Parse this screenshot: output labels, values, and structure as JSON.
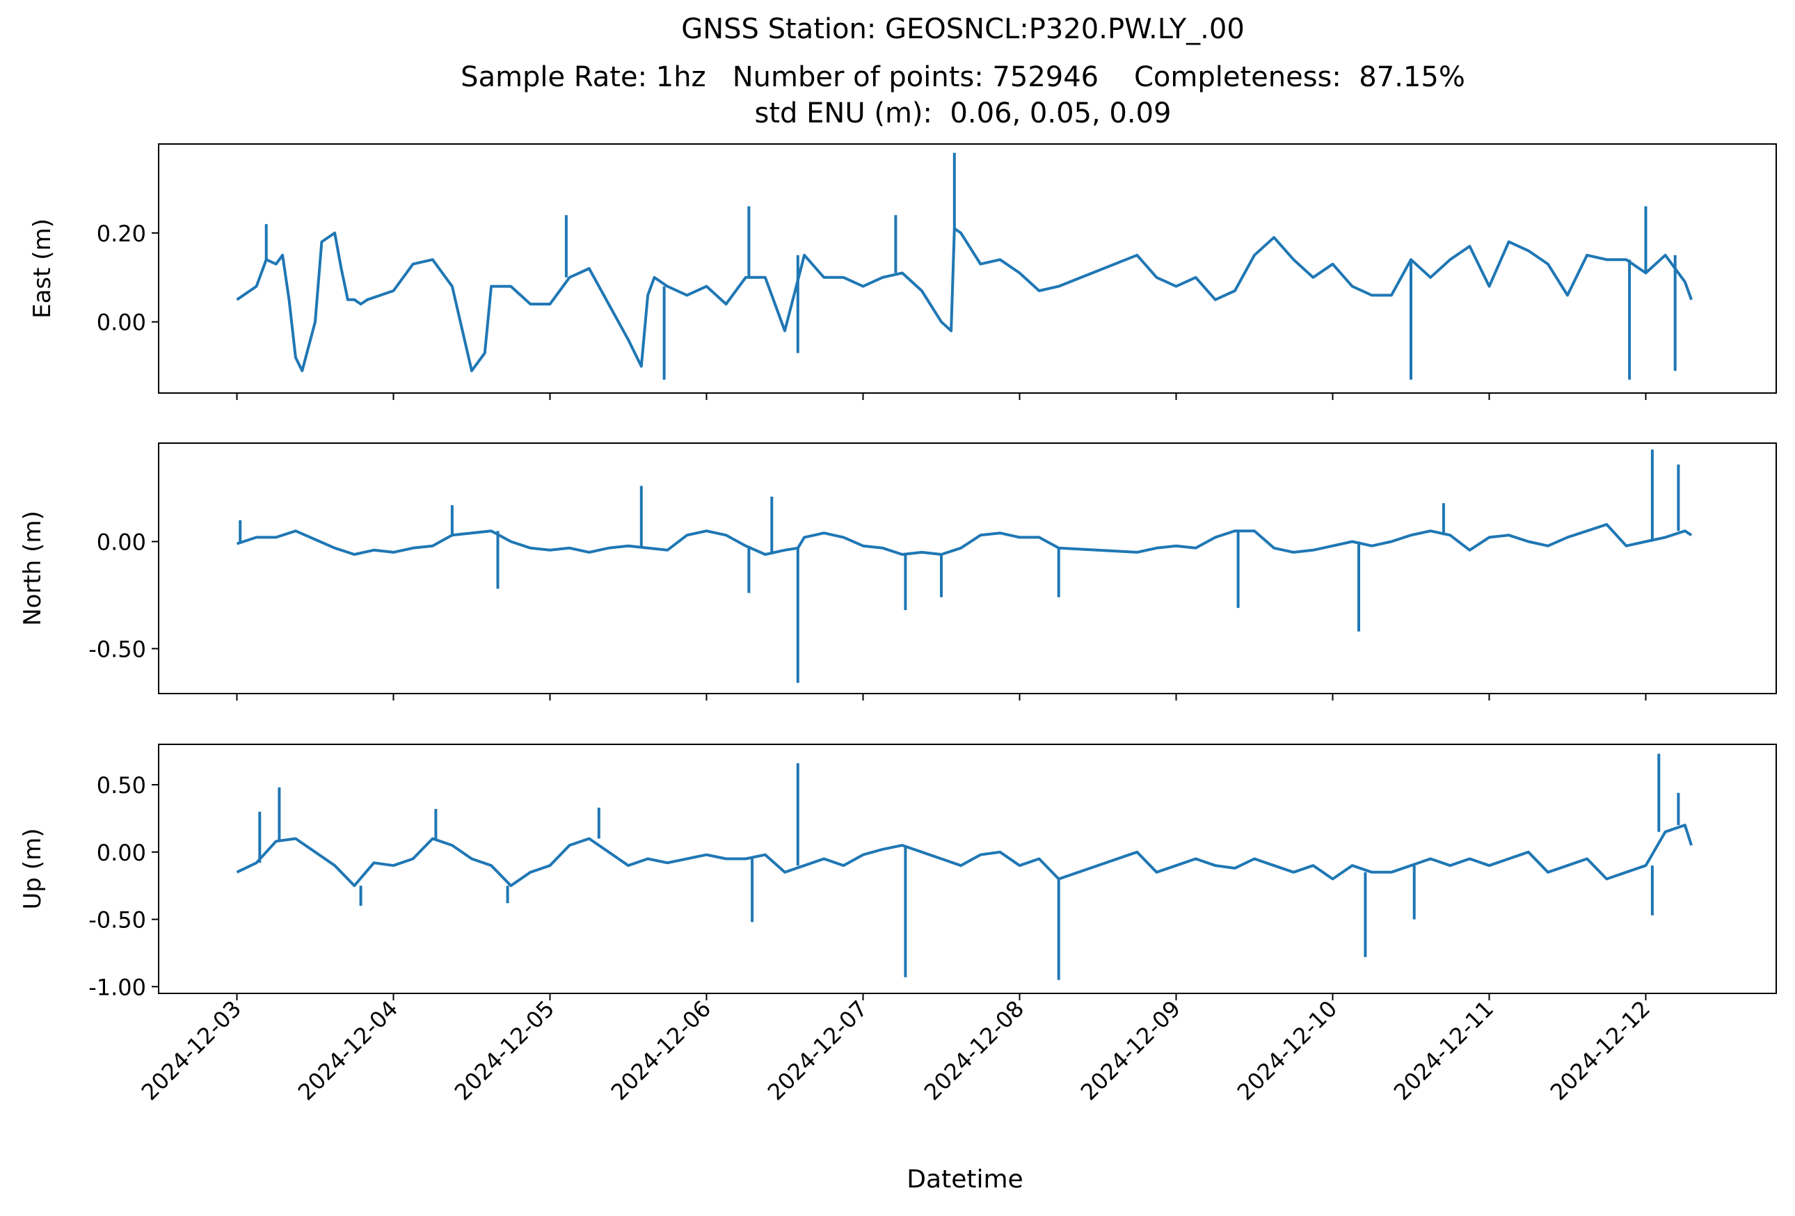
{
  "title": {
    "line1": "GNSS Station: GEOSNCL:P320.PW.LY_.00",
    "line2": "Sample Rate: 1hz   Number of points: 752946    Completeness:  87.15%",
    "line3": "std ENU (m):  0.06, 0.05, 0.09"
  },
  "xlabel": "Datetime",
  "chart_data": {
    "type": "line",
    "title": "GNSS Station: GEOSNCL:P320.PW.LY_.00",
    "xlabel": "Datetime",
    "x_ticks": [
      "2024-12-03",
      "2024-12-04",
      "2024-12-05",
      "2024-12-06",
      "2024-12-07",
      "2024-12-08",
      "2024-12-09",
      "2024-12-10",
      "2024-12-11",
      "2024-12-12"
    ],
    "xlim": [
      "2024-12-02T12:00",
      "2024-12-12T20:00"
    ],
    "line_color": "#1f77b4",
    "grid": false,
    "legend": "none",
    "panels": [
      {
        "ylabel": "East (m)",
        "ylim": [
          -0.16,
          0.4
        ],
        "yticks": [
          0.0,
          0.2
        ],
        "ytick_labels": [
          "0.00",
          "0.20"
        ],
        "series": {
          "x": [
            "2024-12-03T00:00",
            "2024-12-03T03:00",
            "2024-12-03T04:30",
            "2024-12-03T06:00",
            "2024-12-03T07:00",
            "2024-12-03T08:00",
            "2024-12-03T09:00",
            "2024-12-03T10:00",
            "2024-12-03T12:00",
            "2024-12-03T13:00",
            "2024-12-03T15:00",
            "2024-12-03T16:00",
            "2024-12-03T17:00",
            "2024-12-03T18:00",
            "2024-12-03T19:00",
            "2024-12-03T20:00",
            "2024-12-04T00:00",
            "2024-12-04T03:00",
            "2024-12-04T06:00",
            "2024-12-04T09:00",
            "2024-12-04T12:00",
            "2024-12-04T14:00",
            "2024-12-04T15:00",
            "2024-12-04T18:00",
            "2024-12-04T21:00",
            "2024-12-05T00:00",
            "2024-12-05T03:00",
            "2024-12-05T06:00",
            "2024-12-05T09:00",
            "2024-12-05T12:00",
            "2024-12-05T14:00",
            "2024-12-05T15:00",
            "2024-12-05T16:00",
            "2024-12-05T18:00",
            "2024-12-05T21:00",
            "2024-12-06T00:00",
            "2024-12-06T03:00",
            "2024-12-06T06:00",
            "2024-12-06T09:00",
            "2024-12-06T12:00",
            "2024-12-06T15:00",
            "2024-12-06T18:00",
            "2024-12-06T21:00",
            "2024-12-07T00:00",
            "2024-12-07T03:00",
            "2024-12-07T06:00",
            "2024-12-07T09:00",
            "2024-12-07T12:00",
            "2024-12-07T13:30",
            "2024-12-07T14:00",
            "2024-12-07T15:00",
            "2024-12-07T18:00",
            "2024-12-07T21:00",
            "2024-12-08T00:00",
            "2024-12-08T03:00",
            "2024-12-08T06:00",
            "2024-12-08T18:00",
            "2024-12-08T21:00",
            "2024-12-09T00:00",
            "2024-12-09T03:00",
            "2024-12-09T06:00",
            "2024-12-09T09:00",
            "2024-12-09T12:00",
            "2024-12-09T15:00",
            "2024-12-09T18:00",
            "2024-12-09T21:00",
            "2024-12-10T00:00",
            "2024-12-10T03:00",
            "2024-12-10T06:00",
            "2024-12-10T09:00",
            "2024-12-10T12:00",
            "2024-12-10T15:00",
            "2024-12-10T18:00",
            "2024-12-10T21:00",
            "2024-12-11T00:00",
            "2024-12-11T03:00",
            "2024-12-11T06:00",
            "2024-12-11T09:00",
            "2024-12-11T12:00",
            "2024-12-11T15:00",
            "2024-12-11T18:00",
            "2024-12-11T21:00",
            "2024-12-12T00:00",
            "2024-12-12T03:00",
            "2024-12-12T06:00",
            "2024-12-12T07:00"
          ],
          "y": [
            0.05,
            0.08,
            0.14,
            0.13,
            0.15,
            0.05,
            -0.08,
            -0.11,
            0.0,
            0.18,
            0.2,
            0.12,
            0.05,
            0.05,
            0.04,
            0.05,
            0.07,
            0.13,
            0.14,
            0.08,
            -0.11,
            -0.07,
            0.08,
            0.08,
            0.04,
            0.04,
            0.1,
            0.12,
            0.04,
            -0.04,
            -0.1,
            0.06,
            0.1,
            0.08,
            0.06,
            0.08,
            0.04,
            0.1,
            0.1,
            -0.02,
            0.15,
            0.1,
            0.1,
            0.08,
            0.1,
            0.11,
            0.07,
            0.0,
            -0.02,
            0.21,
            0.2,
            0.13,
            0.14,
            0.11,
            0.07,
            0.08,
            0.15,
            0.1,
            0.08,
            0.1,
            0.05,
            0.07,
            0.15,
            0.19,
            0.14,
            0.1,
            0.13,
            0.08,
            0.06,
            0.06,
            0.14,
            0.1,
            0.14,
            0.17,
            0.08,
            0.18,
            0.16,
            0.13,
            0.06,
            0.15,
            0.14,
            0.14,
            0.11,
            0.15,
            0.09,
            0.05
          ]
        },
        "spikes": [
          {
            "x": "2024-12-03T04:30",
            "y": 0.22
          },
          {
            "x": "2024-12-05T02:30",
            "y": 0.24
          },
          {
            "x": "2024-12-05T17:30",
            "y": -0.13
          },
          {
            "x": "2024-12-06T06:30",
            "y": 0.26
          },
          {
            "x": "2024-12-06T14:00",
            "y": -0.07
          },
          {
            "x": "2024-12-07T05:00",
            "y": 0.24
          },
          {
            "x": "2024-12-07T14:00",
            "y": 0.38
          },
          {
            "x": "2024-12-10T12:00",
            "y": -0.13
          },
          {
            "x": "2024-12-12T00:00",
            "y": 0.26
          },
          {
            "x": "2024-12-11T21:30",
            "y": -0.13
          },
          {
            "x": "2024-12-12T04:30",
            "y": -0.11
          }
        ]
      },
      {
        "ylabel": "North (m)",
        "ylim": [
          -0.71,
          0.46
        ],
        "yticks": [
          0.0,
          -0.5
        ],
        "ytick_labels": [
          "0.00",
          "-0.50"
        ],
        "series": {
          "x": [
            "2024-12-03T00:00",
            "2024-12-03T03:00",
            "2024-12-03T06:00",
            "2024-12-03T09:00",
            "2024-12-03T12:00",
            "2024-12-03T15:00",
            "2024-12-03T18:00",
            "2024-12-03T21:00",
            "2024-12-04T00:00",
            "2024-12-04T03:00",
            "2024-12-04T06:00",
            "2024-12-04T09:00",
            "2024-12-04T12:00",
            "2024-12-04T15:00",
            "2024-12-04T18:00",
            "2024-12-04T21:00",
            "2024-12-05T00:00",
            "2024-12-05T03:00",
            "2024-12-05T06:00",
            "2024-12-05T09:00",
            "2024-12-05T12:00",
            "2024-12-05T15:00",
            "2024-12-05T18:00",
            "2024-12-05T21:00",
            "2024-12-06T00:00",
            "2024-12-06T03:00",
            "2024-12-06T06:00",
            "2024-12-06T09:00",
            "2024-12-06T12:00",
            "2024-12-06T14:00",
            "2024-12-06T15:00",
            "2024-12-06T18:00",
            "2024-12-06T21:00",
            "2024-12-07T00:00",
            "2024-12-07T03:00",
            "2024-12-07T06:00",
            "2024-12-07T09:00",
            "2024-12-07T12:00",
            "2024-12-07T15:00",
            "2024-12-07T18:00",
            "2024-12-07T21:00",
            "2024-12-08T00:00",
            "2024-12-08T03:00",
            "2024-12-08T06:00",
            "2024-12-08T18:00",
            "2024-12-08T21:00",
            "2024-12-09T00:00",
            "2024-12-09T03:00",
            "2024-12-09T06:00",
            "2024-12-09T09:00",
            "2024-12-09T12:00",
            "2024-12-09T15:00",
            "2024-12-09T18:00",
            "2024-12-09T21:00",
            "2024-12-10T00:00",
            "2024-12-10T03:00",
            "2024-12-10T06:00",
            "2024-12-10T09:00",
            "2024-12-10T12:00",
            "2024-12-10T15:00",
            "2024-12-10T18:00",
            "2024-12-10T21:00",
            "2024-12-11T00:00",
            "2024-12-11T03:00",
            "2024-12-11T06:00",
            "2024-12-11T09:00",
            "2024-12-11T12:00",
            "2024-12-11T15:00",
            "2024-12-11T18:00",
            "2024-12-11T21:00",
            "2024-12-12T00:00",
            "2024-12-12T03:00",
            "2024-12-12T06:00",
            "2024-12-12T07:00"
          ],
          "y": [
            -0.01,
            0.02,
            0.02,
            0.05,
            0.01,
            -0.03,
            -0.06,
            -0.04,
            -0.05,
            -0.03,
            -0.02,
            0.03,
            0.04,
            0.05,
            0.0,
            -0.03,
            -0.04,
            -0.03,
            -0.05,
            -0.03,
            -0.02,
            -0.03,
            -0.04,
            0.03,
            0.05,
            0.03,
            -0.02,
            -0.06,
            -0.04,
            -0.03,
            0.02,
            0.04,
            0.02,
            -0.02,
            -0.03,
            -0.06,
            -0.05,
            -0.06,
            -0.03,
            0.03,
            0.04,
            0.02,
            0.02,
            -0.03,
            -0.05,
            -0.03,
            -0.02,
            -0.03,
            0.02,
            0.05,
            0.05,
            -0.03,
            -0.05,
            -0.04,
            -0.02,
            0.0,
            -0.02,
            0.0,
            0.03,
            0.05,
            0.03,
            -0.04,
            0.02,
            0.03,
            0.0,
            -0.02,
            0.02,
            0.05,
            0.08,
            -0.02,
            0.0,
            0.02,
            0.05,
            0.03
          ],
          "gap_after_index": 43
        },
        "spikes": [
          {
            "x": "2024-12-03T00:30",
            "y": 0.1
          },
          {
            "x": "2024-12-04T09:00",
            "y": 0.17
          },
          {
            "x": "2024-12-04T16:00",
            "y": -0.22
          },
          {
            "x": "2024-12-05T14:00",
            "y": 0.26
          },
          {
            "x": "2024-12-06T06:30",
            "y": -0.24
          },
          {
            "x": "2024-12-06T10:00",
            "y": 0.21
          },
          {
            "x": "2024-12-06T14:00",
            "y": -0.66
          },
          {
            "x": "2024-12-07T06:30",
            "y": -0.32
          },
          {
            "x": "2024-12-07T12:00",
            "y": -0.26
          },
          {
            "x": "2024-12-08T06:00",
            "y": -0.26
          },
          {
            "x": "2024-12-09T09:30",
            "y": -0.31
          },
          {
            "x": "2024-12-10T04:00",
            "y": -0.42
          },
          {
            "x": "2024-12-10T17:00",
            "y": 0.18
          },
          {
            "x": "2024-12-12T01:00",
            "y": 0.43
          },
          {
            "x": "2024-12-12T05:00",
            "y": 0.36
          }
        ]
      },
      {
        "ylabel": "Up (m)",
        "ylim": [
          -1.05,
          0.8
        ],
        "yticks": [
          0.5,
          0.0,
          -0.5,
          -1.0
        ],
        "ytick_labels": [
          "0.50",
          "0.00",
          "-0.50",
          "-1.00"
        ],
        "series": {
          "x": [
            "2024-12-03T00:00",
            "2024-12-03T03:00",
            "2024-12-03T06:00",
            "2024-12-03T09:00",
            "2024-12-03T12:00",
            "2024-12-03T15:00",
            "2024-12-03T18:00",
            "2024-12-03T21:00",
            "2024-12-04T00:00",
            "2024-12-04T03:00",
            "2024-12-04T06:00",
            "2024-12-04T09:00",
            "2024-12-04T12:00",
            "2024-12-04T15:00",
            "2024-12-04T18:00",
            "2024-12-04T21:00",
            "2024-12-05T00:00",
            "2024-12-05T03:00",
            "2024-12-05T06:00",
            "2024-12-05T09:00",
            "2024-12-05T12:00",
            "2024-12-05T15:00",
            "2024-12-05T18:00",
            "2024-12-05T21:00",
            "2024-12-06T00:00",
            "2024-12-06T03:00",
            "2024-12-06T06:00",
            "2024-12-06T09:00",
            "2024-12-06T12:00",
            "2024-12-06T15:00",
            "2024-12-06T18:00",
            "2024-12-06T21:00",
            "2024-12-07T00:00",
            "2024-12-07T03:00",
            "2024-12-07T06:00",
            "2024-12-07T09:00",
            "2024-12-07T12:00",
            "2024-12-07T15:00",
            "2024-12-07T18:00",
            "2024-12-07T21:00",
            "2024-12-08T00:00",
            "2024-12-08T03:00",
            "2024-12-08T06:00",
            "2024-12-08T18:00",
            "2024-12-08T21:00",
            "2024-12-09T00:00",
            "2024-12-09T03:00",
            "2024-12-09T06:00",
            "2024-12-09T09:00",
            "2024-12-09T12:00",
            "2024-12-09T15:00",
            "2024-12-09T18:00",
            "2024-12-09T21:00",
            "2024-12-10T00:00",
            "2024-12-10T03:00",
            "2024-12-10T06:00",
            "2024-12-10T09:00",
            "2024-12-10T12:00",
            "2024-12-10T15:00",
            "2024-12-10T18:00",
            "2024-12-10T21:00",
            "2024-12-11T00:00",
            "2024-12-11T03:00",
            "2024-12-11T06:00",
            "2024-12-11T09:00",
            "2024-12-11T12:00",
            "2024-12-11T15:00",
            "2024-12-11T18:00",
            "2024-12-11T21:00",
            "2024-12-12T00:00",
            "2024-12-12T03:00",
            "2024-12-12T06:00",
            "2024-12-12T07:00"
          ],
          "y": [
            -0.15,
            -0.08,
            0.08,
            0.1,
            0.0,
            -0.1,
            -0.25,
            -0.08,
            -0.1,
            -0.05,
            0.1,
            0.05,
            -0.05,
            -0.1,
            -0.25,
            -0.15,
            -0.1,
            0.05,
            0.1,
            0.0,
            -0.1,
            -0.05,
            -0.08,
            -0.05,
            -0.02,
            -0.05,
            -0.05,
            -0.02,
            -0.15,
            -0.1,
            -0.05,
            -0.1,
            -0.02,
            0.02,
            0.05,
            0.0,
            -0.05,
            -0.1,
            -0.02,
            0.0,
            -0.1,
            -0.05,
            -0.2,
            0.0,
            -0.15,
            -0.1,
            -0.05,
            -0.1,
            -0.12,
            -0.05,
            -0.1,
            -0.15,
            -0.1,
            -0.2,
            -0.1,
            -0.15,
            -0.15,
            -0.1,
            -0.05,
            -0.1,
            -0.05,
            -0.1,
            -0.05,
            0.0,
            -0.15,
            -0.1,
            -0.05,
            -0.2,
            -0.15,
            -0.1,
            0.15,
            0.2,
            0.05
          ],
          "gap_after_index": 42
        },
        "spikes": [
          {
            "x": "2024-12-03T03:30",
            "y": 0.3
          },
          {
            "x": "2024-12-03T06:30",
            "y": 0.48
          },
          {
            "x": "2024-12-03T19:00",
            "y": -0.4
          },
          {
            "x": "2024-12-04T06:30",
            "y": 0.32
          },
          {
            "x": "2024-12-04T17:30",
            "y": -0.38
          },
          {
            "x": "2024-12-05T07:30",
            "y": 0.33
          },
          {
            "x": "2024-12-06T07:00",
            "y": -0.52
          },
          {
            "x": "2024-12-06T14:00",
            "y": 0.66
          },
          {
            "x": "2024-12-07T06:30",
            "y": -0.93
          },
          {
            "x": "2024-12-08T06:00",
            "y": -0.95
          },
          {
            "x": "2024-12-10T05:00",
            "y": -0.78
          },
          {
            "x": "2024-12-10T12:30",
            "y": -0.5
          },
          {
            "x": "2024-12-12T02:00",
            "y": 0.73
          },
          {
            "x": "2024-12-12T01:00",
            "y": -0.47
          },
          {
            "x": "2024-12-12T05:00",
            "y": 0.44
          }
        ]
      }
    ]
  }
}
